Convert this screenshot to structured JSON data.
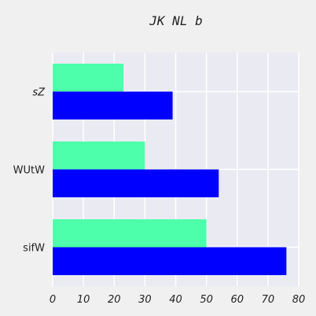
{
  "chart_data": {
    "type": "bar",
    "orientation": "horizontal",
    "title": "JK NL b",
    "xlabel": "",
    "ylabel": "",
    "categories": [
      "sZ",
      "WUtW",
      "sifW"
    ],
    "category_label_styles": [
      "italic",
      "normal",
      "normal"
    ],
    "series": [
      {
        "values": [
          23,
          30,
          50
        ],
        "color": "#4dffaa"
      },
      {
        "values": [
          39,
          54,
          76
        ],
        "color": "#0000ff"
      }
    ],
    "xlim": [
      0,
      80
    ],
    "xticks": [
      0,
      10,
      20,
      30,
      40,
      50,
      60,
      70,
      80
    ],
    "grid": true,
    "legend": "none",
    "plot_background": "#eaeaf2",
    "page_background": "#f0f0f0"
  }
}
